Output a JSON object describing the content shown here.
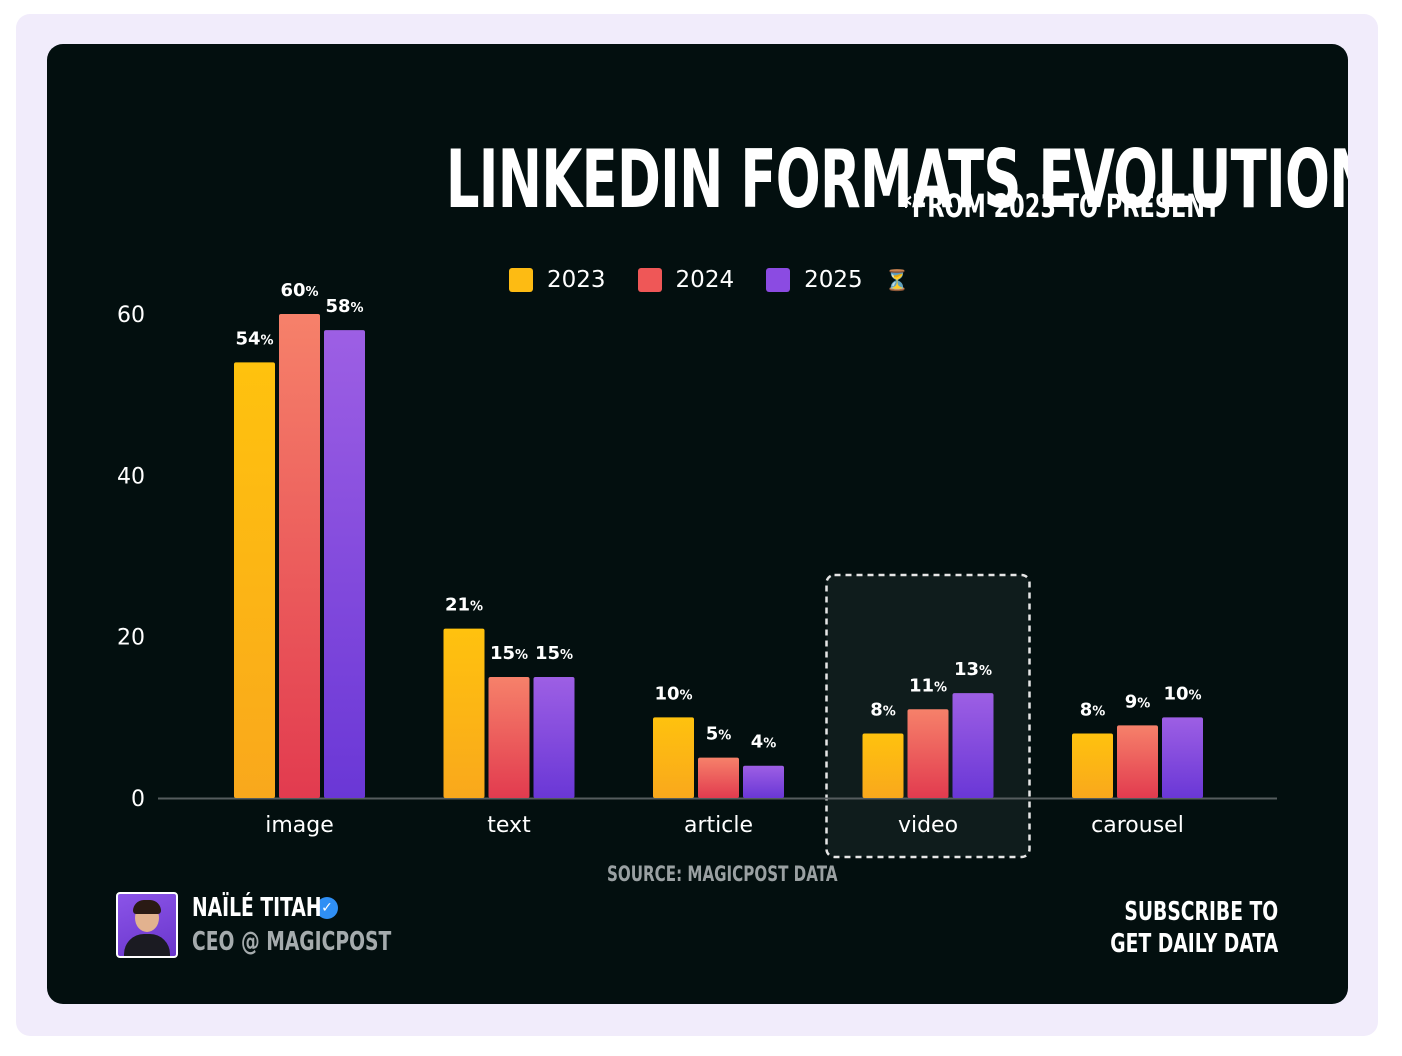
{
  "title": "LINKEDIN FORMATS EVOLUTION",
  "subtitle": "*FROM 2023 TO PRESENT",
  "source": "SOURCE: MAGICPOST DATA",
  "author": {
    "name": "NAÏLÉ TITAH",
    "role": "CEO @ MAGICPOST"
  },
  "subscribe": {
    "line1": "SUBSCRIBE TO",
    "line2": "GET DAILY DATA"
  },
  "legend": [
    {
      "label": "2023",
      "color": "#fdbb13"
    },
    {
      "label": "2024",
      "color": "#ef5757"
    },
    {
      "label": "2025",
      "color": "#8b4be2",
      "icon": "hourglass-icon"
    }
  ],
  "chart_data": {
    "type": "bar",
    "categories": [
      "image",
      "text",
      "article",
      "video",
      "carousel"
    ],
    "series": [
      {
        "name": "2023",
        "values": [
          54,
          21,
          10,
          8,
          8
        ]
      },
      {
        "name": "2024",
        "values": [
          60,
          15,
          5,
          11,
          9
        ]
      },
      {
        "name": "2025",
        "values": [
          58,
          15,
          4,
          13,
          10
        ]
      }
    ],
    "value_labels": [
      [
        "54%",
        "21%",
        "10%",
        "8%",
        "8%"
      ],
      [
        "60%",
        "15%",
        "5%",
        "11%",
        "9%"
      ],
      [
        "58%",
        "15%",
        "4%",
        "13%",
        "10%"
      ]
    ],
    "yticks": [
      "0",
      "20",
      "40",
      "60"
    ],
    "ylim": [
      0,
      60
    ],
    "highlighted_category": "video",
    "grid": false,
    "legend_position": "top-center"
  }
}
